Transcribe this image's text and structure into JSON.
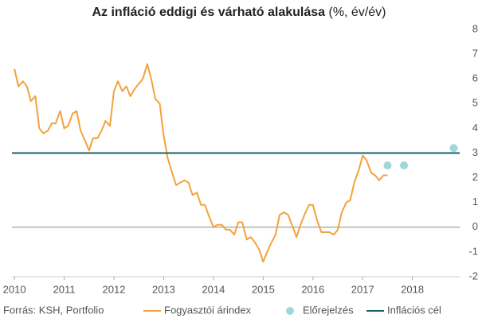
{
  "chart_data": {
    "type": "line",
    "title": "Az infláció eddigi és várható alakulása",
    "subtitle": "(%, év/év)",
    "source": "Forrás: KSH, Portfolio",
    "xlim": [
      2009.95,
      2018.95
    ],
    "xticks": [
      2010,
      2011,
      2012,
      2013,
      2014,
      2015,
      2016,
      2017,
      2018
    ],
    "ylim": [
      -2,
      8
    ],
    "yticks": [
      -2,
      -1,
      0,
      1,
      2,
      3,
      4,
      5,
      6,
      7,
      8
    ],
    "zero_line": true,
    "series": [
      {
        "name": "Fogyasztói árindex",
        "type": "line",
        "color": "#f4a23c",
        "x": [
          2010,
          2010.08,
          2010.17,
          2010.25,
          2010.33,
          2010.42,
          2010.5,
          2010.58,
          2010.67,
          2010.75,
          2010.83,
          2010.92,
          2011,
          2011.08,
          2011.17,
          2011.25,
          2011.33,
          2011.42,
          2011.5,
          2011.58,
          2011.67,
          2011.75,
          2011.83,
          2011.92,
          2012,
          2012.08,
          2012.17,
          2012.25,
          2012.33,
          2012.42,
          2012.5,
          2012.58,
          2012.67,
          2012.75,
          2012.83,
          2012.92,
          2013,
          2013.08,
          2013.17,
          2013.25,
          2013.33,
          2013.42,
          2013.5,
          2013.58,
          2013.67,
          2013.75,
          2013.83,
          2013.92,
          2014,
          2014.08,
          2014.17,
          2014.25,
          2014.33,
          2014.42,
          2014.5,
          2014.58,
          2014.67,
          2014.75,
          2014.83,
          2014.92,
          2015,
          2015.08,
          2015.17,
          2015.25,
          2015.33,
          2015.42,
          2015.5,
          2015.58,
          2015.67,
          2015.75,
          2015.83,
          2015.92,
          2016,
          2016.08,
          2016.17,
          2016.25,
          2016.33,
          2016.42,
          2016.5,
          2016.58,
          2016.67,
          2016.75,
          2016.83,
          2016.92,
          2017,
          2017.08,
          2017.17,
          2017.25,
          2017.33,
          2017.42,
          2017.5
        ],
        "values": [
          6.4,
          5.7,
          5.9,
          5.7,
          5.1,
          5.3,
          4.0,
          3.8,
          3.9,
          4.2,
          4.2,
          4.7,
          4.0,
          4.1,
          4.6,
          4.7,
          3.9,
          3.5,
          3.1,
          3.6,
          3.6,
          3.9,
          4.3,
          4.1,
          5.5,
          5.9,
          5.5,
          5.7,
          5.3,
          5.6,
          5.8,
          6.0,
          6.6,
          6.0,
          5.2,
          5.0,
          3.7,
          2.8,
          2.2,
          1.7,
          1.8,
          1.9,
          1.8,
          1.3,
          1.4,
          0.9,
          0.9,
          0.4,
          0.0,
          0.1,
          0.1,
          -0.1,
          -0.1,
          -0.3,
          0.2,
          0.2,
          -0.5,
          -0.4,
          -0.6,
          -0.9,
          -1.4,
          -1.0,
          -0.6,
          -0.3,
          0.5,
          0.6,
          0.5,
          0.1,
          -0.4,
          0.1,
          0.5,
          0.9,
          0.9,
          0.3,
          -0.2,
          -0.2,
          -0.2,
          -0.3,
          -0.1,
          0.6,
          1.0,
          1.1,
          1.8,
          2.3,
          2.9,
          2.7,
          2.2,
          2.1,
          1.9,
          2.1,
          2.1
        ]
      },
      {
        "name": "Előrejelzés",
        "type": "scatter",
        "color": "#9fd8d8",
        "x": [
          2017.5,
          2017.83,
          2018.83
        ],
        "values": [
          2.5,
          2.5,
          3.2
        ]
      },
      {
        "name": "Inflációs cél",
        "type": "hline",
        "color": "#1e5f63",
        "values": [
          3
        ]
      }
    ]
  }
}
